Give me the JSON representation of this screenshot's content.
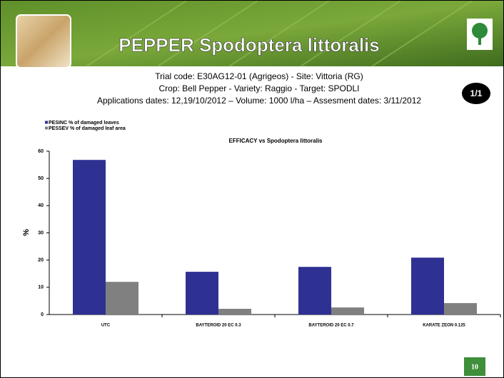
{
  "header": {
    "title": "PEPPER Spodoptera littoralis"
  },
  "info": [
    "Trial code: E30AG12-01 (Agrigeos) - Site: Vittoria (RG)",
    "Crop: Bell Pepper - Variety: Raggio - Target: SPODLI",
    "Applications dates: 12,19/10/2012 – Volume: 1000 l/ha – Assesment dates: 3/11/2012"
  ],
  "badge": "1/1",
  "page_number": "10",
  "chart_data": {
    "type": "bar",
    "title": "EFFICACY vs Spodoptera littoralis",
    "y_label": "%",
    "categories": [
      "UTC",
      "BAYTEROID 20 EC 0.3",
      "BAYTEROID 20 EC 0.7",
      "KARATE ZEON 0.125"
    ],
    "series": [
      {
        "name": "PESINC % of damaged leaves",
        "color": "#2e3192",
        "values": [
          56.8,
          15.7,
          17.5,
          20.9
        ]
      },
      {
        "name": "PESSEV % of damaged leaf area",
        "color": "#808080",
        "values": [
          12.0,
          2.1,
          2.6,
          4.2
        ]
      }
    ],
    "ylim": [
      0,
      60
    ],
    "yticks": [
      0,
      10,
      20,
      30,
      40,
      50,
      60
    ],
    "grid": false,
    "legend": "top-left"
  }
}
